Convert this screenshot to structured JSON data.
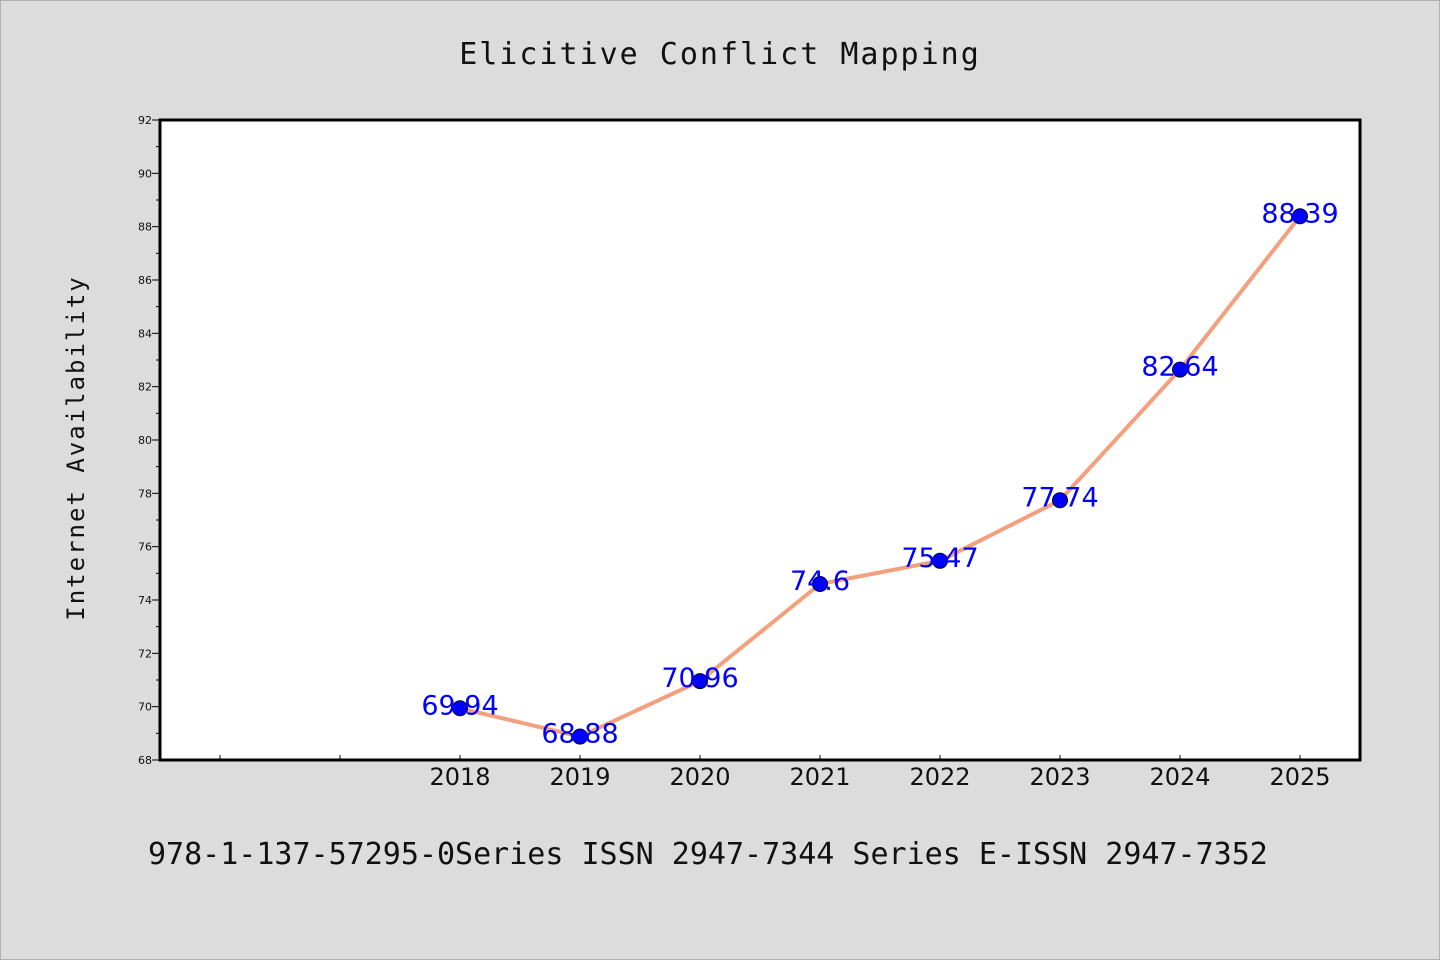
{
  "chart_data": {
    "type": "line",
    "title": "Elicitive Conflict Mapping",
    "xlabel": "",
    "ylabel": "Internet Availability",
    "categories": [
      "2018",
      "2019",
      "2020",
      "2021",
      "2022",
      "2023",
      "2024",
      "2025"
    ],
    "series": [
      {
        "values": [
          69.94,
          68.88,
          70.96,
          74.6,
          75.47,
          77.74,
          82.64,
          88.39
        ],
        "line_color": "#f4a07e",
        "marker_color": "#0000ff"
      }
    ],
    "data_labels": [
      "69.94",
      "68.88",
      "70.96",
      "74.6",
      "75.47",
      "77.74",
      "82.64",
      "88.39"
    ],
    "ylim": [
      68,
      92
    ],
    "y_ticks": [
      "68",
      "70",
      "72",
      "74",
      "76",
      "78",
      "80",
      "82",
      "84",
      "86",
      "88",
      "90",
      "92"
    ],
    "grid": false,
    "legend": "none",
    "label_color": "#0000ff",
    "background": "#dcdcdc",
    "plot_background": "#ffffff"
  },
  "footer": {
    "text": "978-1-137-57295-0Series ISSN 2947-7344 Series E-ISSN 2947-7352"
  }
}
